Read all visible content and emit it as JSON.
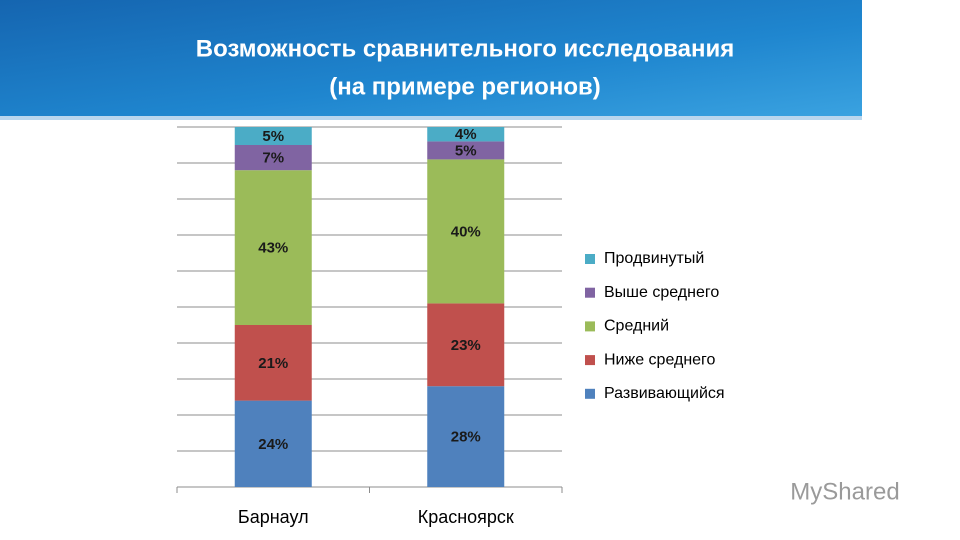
{
  "chart_data": {
    "type": "stacked_bar",
    "title": "Возможность сравнительного исследования",
    "subtitle": "(на примере регионов)",
    "categories": [
      "Барнаул",
      "Красноярск"
    ],
    "series": [
      {
        "name": "Развивающийся",
        "color": "#4f81bd",
        "values": [
          24,
          28
        ],
        "value_labels": [
          "24%",
          "28%"
        ]
      },
      {
        "name": "Ниже среднего",
        "color": "#c0504d",
        "values": [
          21,
          23
        ],
        "value_labels": [
          "21%",
          "23%"
        ]
      },
      {
        "name": "Средний",
        "color": "#9bbb59",
        "values": [
          43,
          40
        ],
        "value_labels": [
          "43%",
          "40%"
        ]
      },
      {
        "name": "Выше среднего",
        "color": "#8064a2",
        "values": [
          7,
          5
        ],
        "value_labels": [
          "7%",
          "5%"
        ]
      },
      {
        "name": "Продвинутый",
        "color": "#4bacc6",
        "values": [
          5,
          4
        ],
        "value_labels": [
          "5%",
          "4%"
        ]
      }
    ],
    "ylim": [
      0,
      100
    ],
    "yticks": [
      0,
      10,
      20,
      30,
      40,
      50,
      60,
      70,
      80,
      90,
      100
    ],
    "grid": true,
    "legend": "right"
  },
  "watermark": "MyShared"
}
